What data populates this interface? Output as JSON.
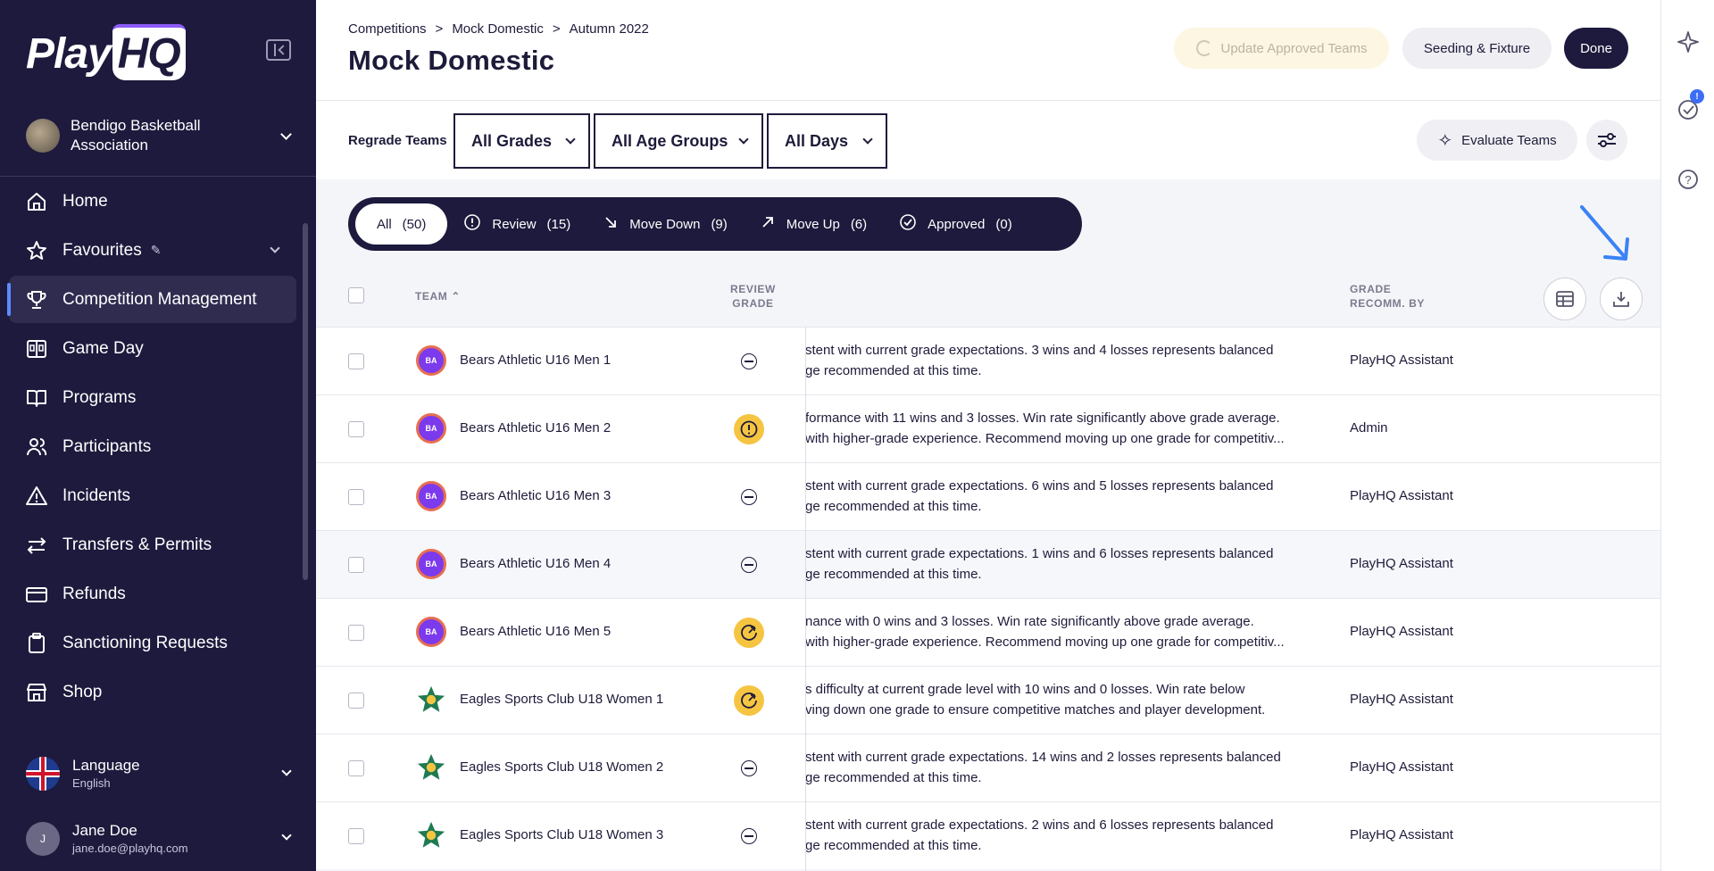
{
  "sidebar": {
    "logo_text": "PlayHQ",
    "logo_main": "Play",
    "logo_badge": "HQ",
    "org_name": "Bendigo Basketball Association",
    "items": [
      {
        "label": "Home",
        "icon": "home-icon"
      },
      {
        "label": "Favourites",
        "icon": "star-icon"
      },
      {
        "label": "Competition Management",
        "icon": "trophy-icon"
      },
      {
        "label": "Game Day",
        "icon": "scoreboard-icon"
      },
      {
        "label": "Programs",
        "icon": "book-icon"
      },
      {
        "label": "Participants",
        "icon": "people-icon"
      },
      {
        "label": "Incidents",
        "icon": "warning-icon"
      },
      {
        "label": "Transfers & Permits",
        "icon": "transfer-icon"
      },
      {
        "label": "Refunds",
        "icon": "card-icon"
      },
      {
        "label": "Sanctioning Requests",
        "icon": "clipboard-icon"
      },
      {
        "label": "Shop",
        "icon": "store-icon"
      }
    ],
    "active_index": 2,
    "language_label": "Language",
    "language_value": "English",
    "user_initial": "J",
    "user_name": "Jane Doe",
    "user_email": "jane.doe@playhq.com"
  },
  "header": {
    "breadcrumb": [
      "Competitions",
      "Mock Domestic",
      "Autumn 2022"
    ],
    "breadcrumb_sep": ">",
    "title": "Mock Domestic",
    "update_label": "Update Approved Teams",
    "seeding_label": "Seeding & Fixture",
    "done_label": "Done"
  },
  "filters": {
    "regrade_label": "Regrade Teams",
    "grades": "All Grades",
    "age_groups": "All Age Groups",
    "days": "All Days",
    "evaluate_label": "Evaluate Teams"
  },
  "tabs": [
    {
      "label": "All",
      "count": "(50)",
      "icon": ""
    },
    {
      "label": "Review",
      "count": "(15)",
      "icon": "alert-circle-icon"
    },
    {
      "label": "Move Down",
      "count": "(9)",
      "icon": "arrow-down-right-icon"
    },
    {
      "label": "Move Up",
      "count": "(6)",
      "icon": "arrow-up-right-icon"
    },
    {
      "label": "Approved",
      "count": "(0)",
      "icon": "check-circle-icon"
    }
  ],
  "table": {
    "col_team": "TEAM",
    "col_review_1": "REVIEW",
    "col_review_2": "GRADE",
    "col_recomm_1": "GRADE",
    "col_recomm_2": "RECOMM. BY",
    "rows": [
      {
        "team": "Bears Athletic U16 Men 1",
        "logo": "BA",
        "status": "neutral",
        "line1": "stent with current grade expectations. 3 wins and 4 losses represents balanced",
        "line2": "ge recommended at this time.",
        "by": "PlayHQ Assistant"
      },
      {
        "team": "Bears Athletic U16 Men 2",
        "logo": "BA",
        "status": "alert",
        "line1": "formance with 11 wins and 3 losses. Win rate significantly above grade average.",
        "line2": "with higher-grade experience. Recommend moving up one grade for competitiv...",
        "by": "Admin"
      },
      {
        "team": "Bears Athletic U16 Men 3",
        "logo": "BA",
        "status": "neutral",
        "line1": "stent with current grade expectations. 6 wins and 5 losses represents balanced",
        "line2": "ge recommended at this time.",
        "by": "PlayHQ Assistant"
      },
      {
        "team": "Bears Athletic U16 Men 4",
        "logo": "BA",
        "status": "neutral",
        "line1": "stent with current grade expectations. 1 wins and 6 losses represents balanced",
        "line2": "ge recommended at this time.",
        "by": "PlayHQ Assistant"
      },
      {
        "team": "Bears Athletic U16 Men 5",
        "logo": "BA",
        "status": "up",
        "line1": "nance with 0 wins and 3 losses. Win rate significantly above grade average.",
        "line2": "with higher-grade experience. Recommend moving up one grade for competitiv...",
        "by": "PlayHQ Assistant"
      },
      {
        "team": "Eagles Sports Club U18 Women 1",
        "logo": "",
        "status": "up",
        "line1": "s difficulty at current grade level with 10 wins and 0 losses. Win rate below",
        "line2": "ving down one grade to ensure competitive matches and player development.",
        "by": "PlayHQ Assistant"
      },
      {
        "team": "Eagles Sports Club U18 Women 2",
        "logo": "",
        "status": "neutral",
        "line1": "stent with current grade expectations. 14 wins and 2 losses represents balanced",
        "line2": "ge recommended at this time.",
        "by": "PlayHQ Assistant"
      },
      {
        "team": "Eagles Sports Club U18 Women 3",
        "logo": "",
        "status": "neutral",
        "line1": "stent with current grade expectations. 2 wins and 6 losses represents balanced",
        "line2": "ge recommended at this time.",
        "by": "PlayHQ Assistant"
      }
    ]
  },
  "rail": {
    "notification_badge": "!"
  },
  "colors": {
    "sidebar_bg": "#1d1a3d",
    "accent": "#5b8cff",
    "status_yellow": "#f5c542",
    "annotation_arrow": "#3b82f6"
  }
}
